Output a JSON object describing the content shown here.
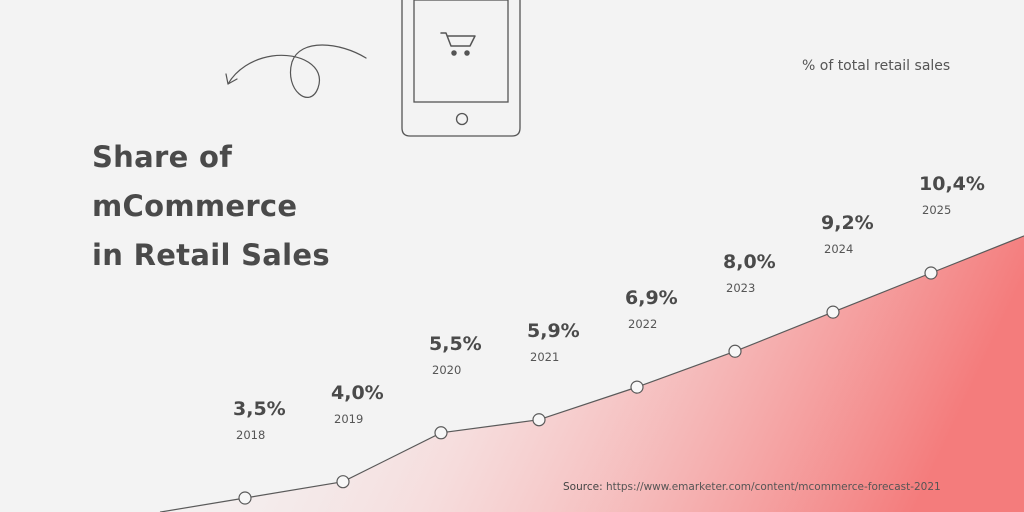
{
  "title_lines": [
    "Share of",
    "mCommerce",
    "in Retail Sales"
  ],
  "unit_label": "% of total retail sales",
  "source": {
    "label": "Source:",
    "url": "https://www.emarketer.com/content/mcommerce-forecast-2021"
  },
  "icons": {
    "phone": "phone-icon",
    "cart": "shopping-cart-icon",
    "arrow": "curly-arrow-icon"
  },
  "colors": {
    "text": "#4a4a4a",
    "line": "#5a5a5a",
    "area_gradient_end": "#f47c7c"
  },
  "chart_data": {
    "type": "line",
    "title": "Share of mCommerce in Retail Sales",
    "ylabel": "% of total retail sales",
    "categories": [
      "2018",
      "2019",
      "2020",
      "2021",
      "2022",
      "2023",
      "2024",
      "2025"
    ],
    "values": [
      3.5,
      4.0,
      5.5,
      5.9,
      6.9,
      8.0,
      9.2,
      10.4
    ],
    "value_labels": [
      "3,5%",
      "4,0%",
      "5,5%",
      "5,9%",
      "6,9%",
      "8,0%",
      "9,2%",
      "10,4%"
    ],
    "grid": false,
    "legend": "none"
  }
}
